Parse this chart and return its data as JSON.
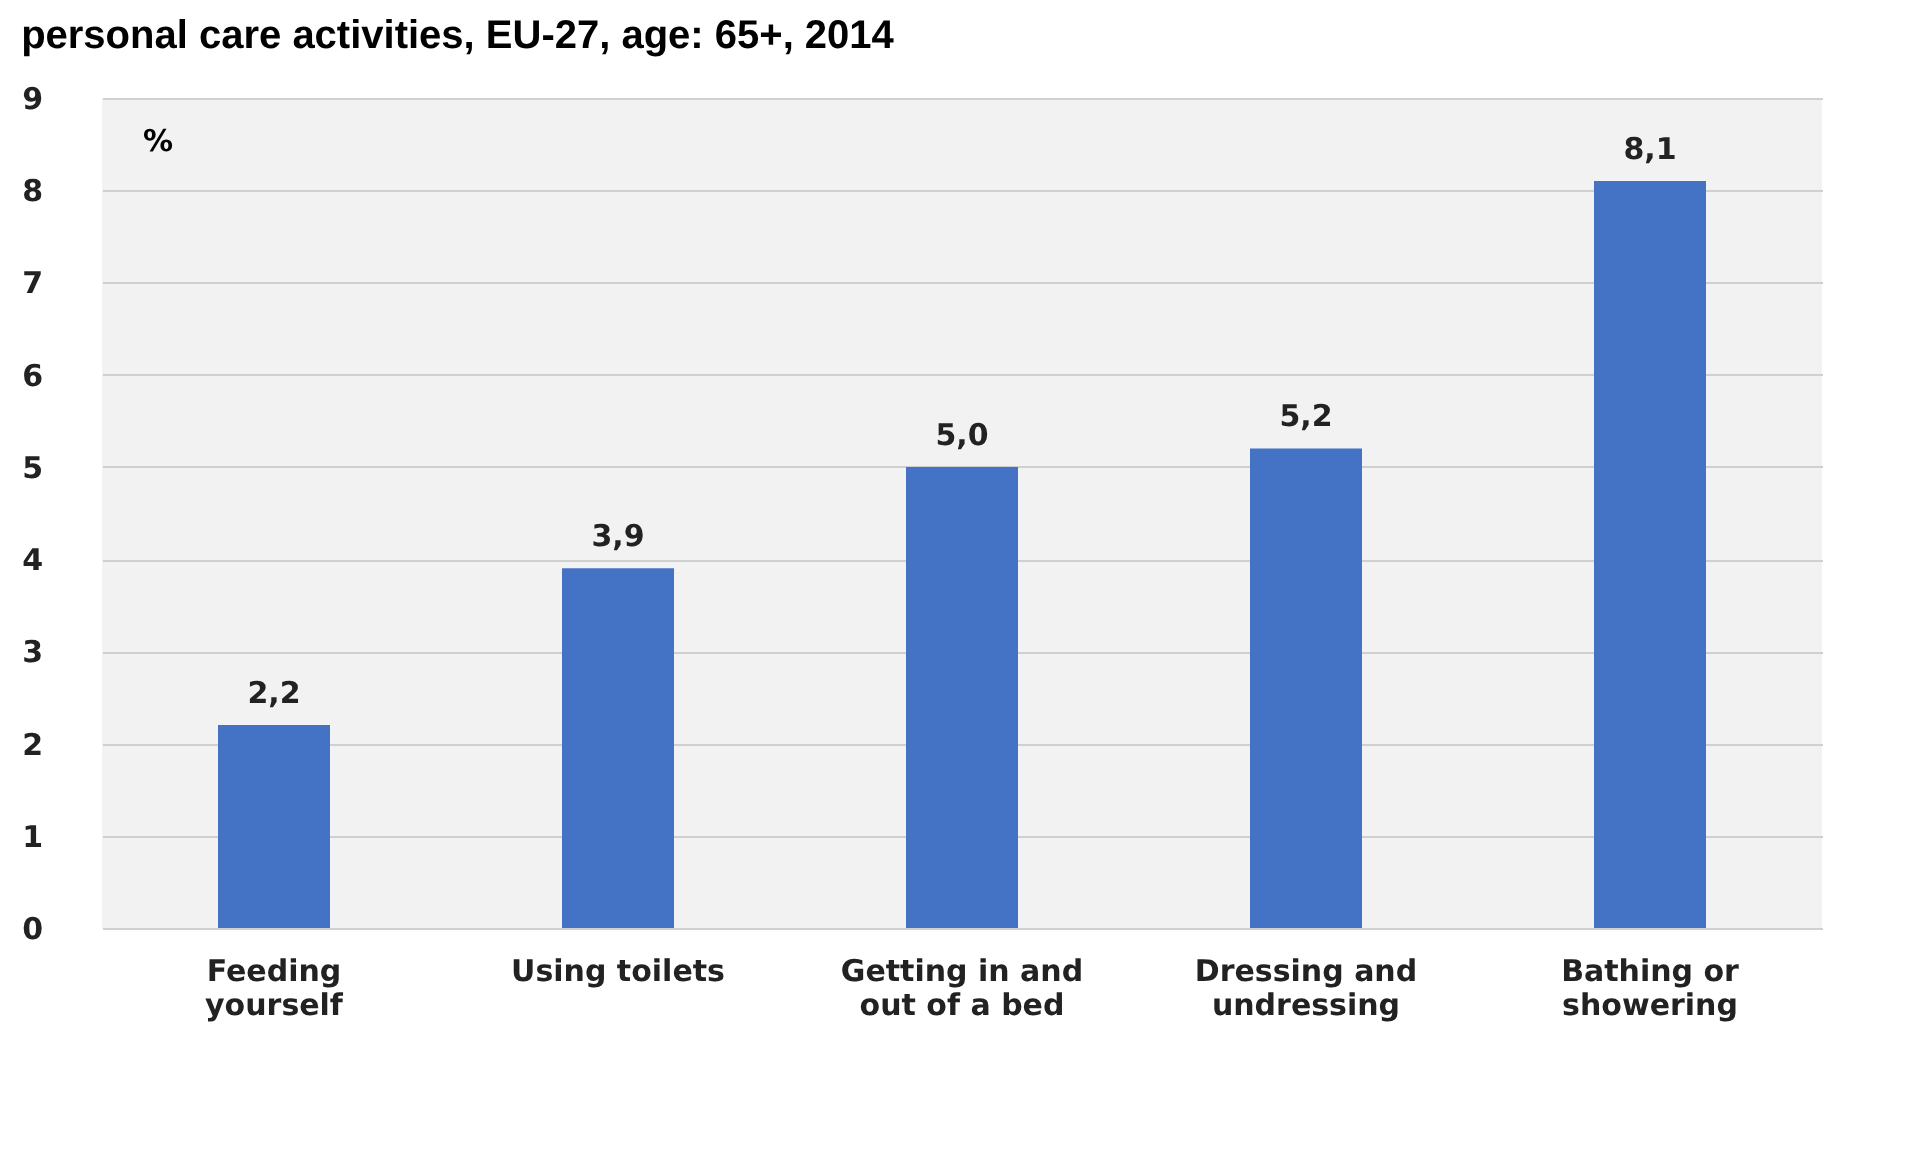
{
  "chart_data": {
    "type": "bar",
    "title": "personal care activities, EU-27, age: 65+, 2014",
    "ylabel": "%",
    "categories": [
      "Feeding yourself",
      "Using toilets",
      "Getting in and out of a bed",
      "Dressing and undressing",
      "Bathing or showering"
    ],
    "values": [
      2.2,
      3.9,
      5.0,
      5.2,
      8.1
    ],
    "value_labels": [
      "2,2",
      "3,9",
      "5,0",
      "5,2",
      "8,1"
    ],
    "color": "#4472c4",
    "ylim": [
      0,
      9
    ],
    "yticks": [
      0,
      1,
      2,
      3,
      4,
      5,
      6,
      7,
      8,
      9
    ],
    "grid": "y"
  }
}
